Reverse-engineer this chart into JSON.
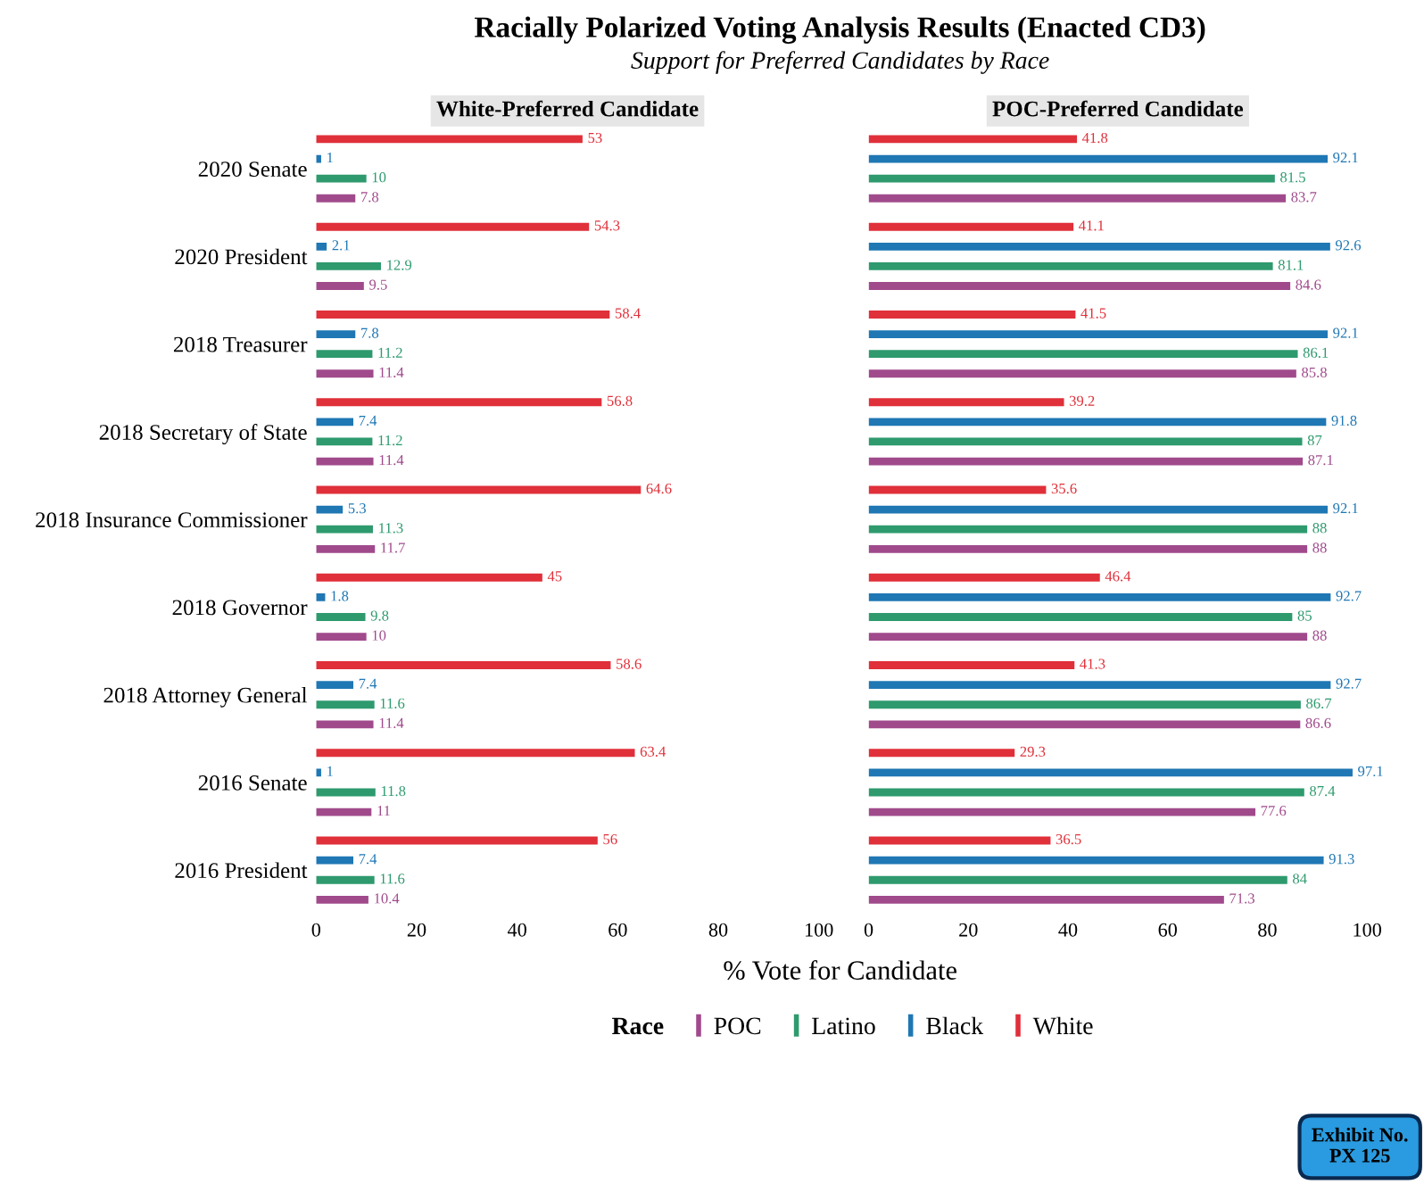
{
  "chart_data": [
    {
      "type": "bar",
      "orientation": "horizontal",
      "title": "White-Preferred Candidate",
      "annotations": [
        "Racially Polarized Voting Analysis Results (Enacted CD3)",
        "Support for Preferred Candidates by Race",
        "Exhibit No. PX 125"
      ],
      "xlabel": "% Vote for Candidate",
      "legend_title": "Race",
      "legend": "bottom",
      "categories": [
        "2020 Senate",
        "2020 President",
        "2018 Treasurer",
        "2018 Secretary of State",
        "2018 Insurance Commissioner",
        "2018 Governor",
        "2018 Attorney General",
        "2016 Senate",
        "2016 President"
      ],
      "series": [
        {
          "name": "White",
          "color": "#e0303a",
          "values": [
            53,
            54.3,
            58.4,
            56.8,
            64.6,
            45,
            58.6,
            63.4,
            56
          ]
        },
        {
          "name": "Black",
          "color": "#1f77b4",
          "values": [
            1,
            2.1,
            7.8,
            7.4,
            5.3,
            1.8,
            7.4,
            1,
            7.4
          ]
        },
        {
          "name": "Latino",
          "color": "#2e9a6e",
          "values": [
            10,
            12.9,
            11.2,
            11.2,
            11.3,
            9.8,
            11.6,
            11.8,
            11.6
          ]
        },
        {
          "name": "POC",
          "color": "#a04a8c",
          "values": [
            7.8,
            9.5,
            11.4,
            11.4,
            11.7,
            10,
            11.4,
            11,
            10.4
          ]
        }
      ],
      "xlim": [
        0,
        100
      ],
      "xticks": [
        0,
        20,
        40,
        60,
        80,
        100
      ],
      "data_labels": true
    },
    {
      "type": "bar",
      "orientation": "horizontal",
      "title": "POC-Preferred Candidate",
      "categories": [
        null,
        null,
        null,
        null,
        null,
        null,
        null,
        null,
        null
      ],
      "series": [
        {
          "color": "#e0303a",
          "values": [
            41.8,
            41.1,
            41.5,
            39.2,
            35.6,
            46.4,
            41.3,
            29.3,
            36.5
          ]
        },
        {
          "color": "#1f77b4",
          "values": [
            92.1,
            92.6,
            92.1,
            91.8,
            92.1,
            92.7,
            92.7,
            97.1,
            91.3
          ]
        },
        {
          "color": "#2e9a6e",
          "values": [
            81.5,
            81.1,
            86.1,
            87,
            88,
            85,
            86.7,
            87.4,
            84
          ]
        },
        {
          "color": "#a04a8c",
          "values": [
            83.7,
            84.6,
            85.8,
            87.1,
            88,
            88,
            86.6,
            77.6,
            71.3
          ]
        }
      ],
      "xlim": [
        0,
        100
      ],
      "xticks": [
        0,
        20,
        40,
        60,
        80,
        100
      ],
      "data_labels": true,
      "tick_labels": "x"
    }
  ]
}
